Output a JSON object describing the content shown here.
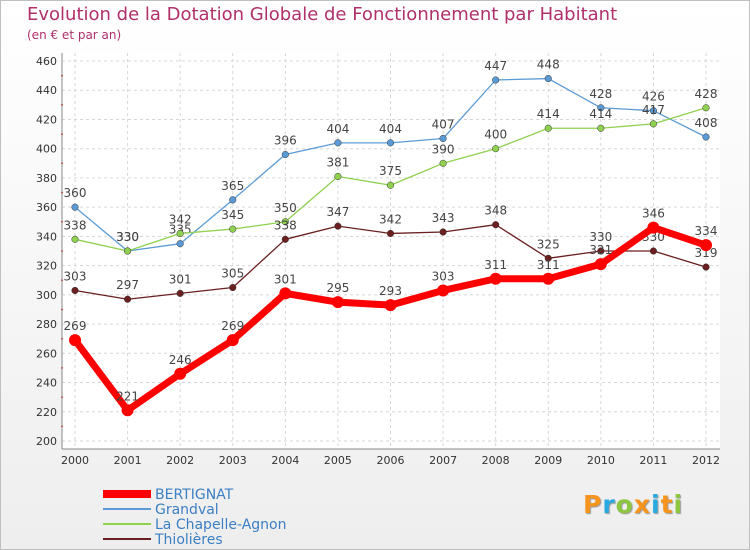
{
  "title": "Evolution de la Dotation Globale de Fonctionnement par Habitant",
  "subtitle": "(en € et par an)",
  "logo": {
    "text": "Proxiti",
    "colors": [
      "#f7941d",
      "#29abe2",
      "#8dc63f",
      "#f7941d",
      "#29abe2",
      "#f7941d",
      "#8dc63f"
    ]
  },
  "chart_data": {
    "type": "line",
    "x": [
      "2000",
      "2001",
      "2002",
      "2003",
      "2004",
      "2005",
      "2006",
      "2007",
      "2008",
      "2009",
      "2010",
      "2011",
      "2012"
    ],
    "ylim": [
      200,
      460
    ],
    "yticks": [
      200,
      220,
      240,
      260,
      280,
      300,
      320,
      340,
      360,
      380,
      400,
      420,
      440,
      460
    ],
    "grid": true,
    "legend": "bottom-left",
    "series": [
      {
        "name": "Grandval",
        "color": "#5b9bd5",
        "values": [
          360,
          330,
          335,
          365,
          396,
          404,
          404,
          407,
          447,
          448,
          428,
          426,
          408
        ]
      },
      {
        "name": "La Chapelle-Agnon",
        "color": "#8fd14f",
        "values": [
          338,
          330,
          342,
          345,
          350,
          381,
          375,
          390,
          400,
          414,
          414,
          417,
          428
        ]
      },
      {
        "name": "Thiolières",
        "color": "#6b1f1f",
        "values": [
          303,
          297,
          301,
          305,
          338,
          347,
          342,
          343,
          348,
          325,
          330,
          330,
          319
        ]
      },
      {
        "name": "BERTIGNAT",
        "color": "#ff0000",
        "values": [
          269,
          221,
          246,
          269,
          301,
          295,
          293,
          303,
          311,
          311,
          321,
          346,
          334
        ]
      }
    ],
    "legend_order": [
      "BERTIGNAT",
      "Grandval",
      "La Chapelle-Agnon",
      "Thiolières"
    ]
  }
}
